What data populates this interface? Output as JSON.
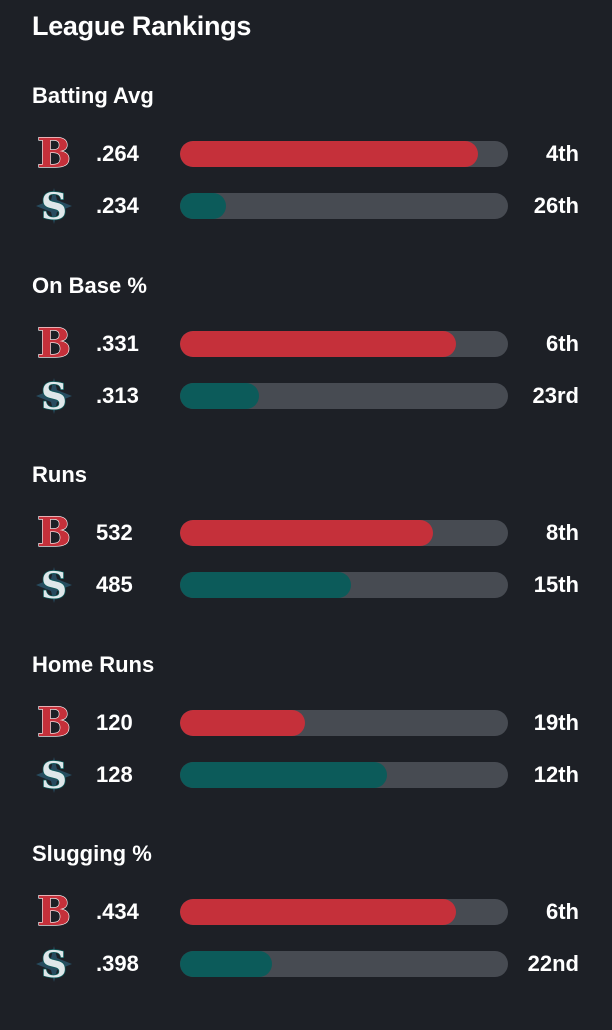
{
  "title": "League Rankings",
  "colors": {
    "background": "#1d2026",
    "track": "#474b52",
    "red_sox": "#c5303a",
    "mariners": "#0c5b5a"
  },
  "teams": {
    "red_sox": {
      "logo_icon": "red-sox-b-icon",
      "logo_text": "B"
    },
    "mariners": {
      "logo_icon": "mariners-s-compass-icon",
      "logo_text": "S"
    }
  },
  "categories": [
    {
      "label": "Batting Avg",
      "rows": [
        {
          "team": "red_sox",
          "value": ".264",
          "rank": "4th",
          "fill": 0.91
        },
        {
          "team": "mariners",
          "value": ".234",
          "rank": "26th",
          "fill": 0.14
        }
      ]
    },
    {
      "label": "On Base %",
      "rows": [
        {
          "team": "red_sox",
          "value": ".331",
          "rank": "6th",
          "fill": 0.84
        },
        {
          "team": "mariners",
          "value": ".313",
          "rank": "23rd",
          "fill": 0.24
        }
      ]
    },
    {
      "label": "Runs",
      "rows": [
        {
          "team": "red_sox",
          "value": "532",
          "rank": "8th",
          "fill": 0.77
        },
        {
          "team": "mariners",
          "value": "485",
          "rank": "15th",
          "fill": 0.52
        }
      ]
    },
    {
      "label": "Home Runs",
      "rows": [
        {
          "team": "red_sox",
          "value": "120",
          "rank": "19th",
          "fill": 0.38
        },
        {
          "team": "mariners",
          "value": "128",
          "rank": "12th",
          "fill": 0.63
        }
      ]
    },
    {
      "label": "Slugging %",
      "rows": [
        {
          "team": "red_sox",
          "value": ".434",
          "rank": "6th",
          "fill": 0.84
        },
        {
          "team": "mariners",
          "value": ".398",
          "rank": "22nd",
          "fill": 0.28
        }
      ]
    }
  ]
}
